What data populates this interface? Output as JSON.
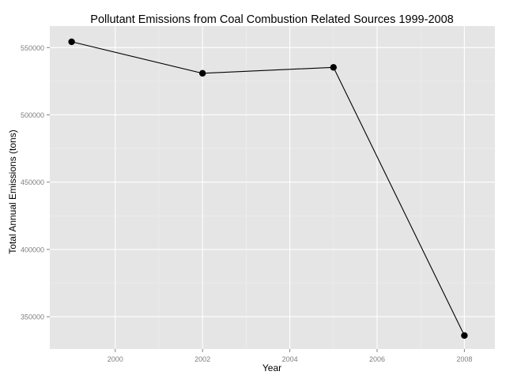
{
  "chart_data": {
    "type": "line",
    "title": "Pollutant Emissions from Coal Combustion Related Sources 1999-2008",
    "xlabel": "Year",
    "ylabel": "Total Annual Emissions (tons)",
    "x": [
      1999,
      2002,
      2005,
      2008
    ],
    "y": [
      554300,
      530900,
      535300,
      336000
    ],
    "xlim": [
      1998.5,
      2008.7
    ],
    "ylim": [
      326000,
      566000
    ],
    "xticks": [
      2000,
      2002,
      2004,
      2006,
      2008
    ],
    "yticks": [
      350000,
      400000,
      450000,
      500000,
      550000
    ],
    "xtick_labels": [
      "2000",
      "2002",
      "2004",
      "2006",
      "2008"
    ],
    "ytick_labels": [
      "350000",
      "400000",
      "450000",
      "500000",
      "550000"
    ],
    "grid": true,
    "legend": "none",
    "colors": {
      "panel": "#e5e5e5",
      "grid_major": "#ffffff",
      "grid_minor": "#f0f0f0",
      "line": "#000000",
      "point": "#000000",
      "tick_text": "#7f7f7f",
      "label_text": "#000000"
    }
  }
}
